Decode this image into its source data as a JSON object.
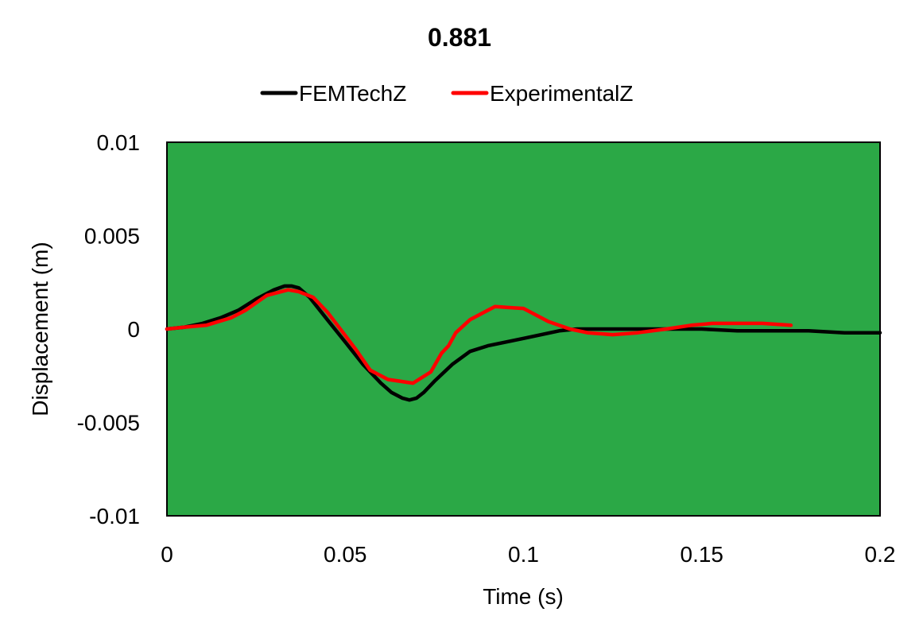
{
  "chart_data": {
    "type": "line",
    "title": "0.881",
    "xlabel": "Time (s)",
    "ylabel": "Displacement (m)",
    "xlim": [
      0,
      0.2
    ],
    "ylim": [
      -0.01,
      0.01
    ],
    "x_ticks": [
      "0",
      "0.05",
      "0.1",
      "0.15",
      "0.2"
    ],
    "y_ticks": [
      "0.01",
      "0.005",
      "0",
      "-0.005",
      "-0.01"
    ],
    "x_tick_values": [
      0,
      0.05,
      0.1,
      0.15,
      0.2
    ],
    "y_tick_values": [
      0.01,
      0.005,
      0,
      -0.005,
      -0.01
    ],
    "grid": false,
    "legend_position": "top",
    "plot_background": "#2ba846",
    "series": [
      {
        "name": "FEMTechZ",
        "color": "#000000",
        "x": [
          0,
          0.005,
          0.01,
          0.015,
          0.02,
          0.025,
          0.03,
          0.033,
          0.035,
          0.037,
          0.04,
          0.045,
          0.05,
          0.055,
          0.06,
          0.063,
          0.066,
          0.068,
          0.07,
          0.072,
          0.075,
          0.08,
          0.085,
          0.09,
          0.095,
          0.1,
          0.105,
          0.11,
          0.115,
          0.12,
          0.13,
          0.14,
          0.15,
          0.16,
          0.17,
          0.18,
          0.19,
          0.2
        ],
        "y": [
          0,
          0.0001,
          0.0003,
          0.0006,
          0.001,
          0.0016,
          0.0021,
          0.0023,
          0.0023,
          0.0022,
          0.0017,
          0.0005,
          -0.0007,
          -0.0019,
          -0.0029,
          -0.0034,
          -0.0037,
          -0.0038,
          -0.0037,
          -0.0034,
          -0.0028,
          -0.0019,
          -0.0012,
          -0.0009,
          -0.0007,
          -0.0005,
          -0.0003,
          -0.0001,
          0.0,
          0.0,
          0.0,
          0.0,
          0.0,
          -0.0001,
          -0.0001,
          -0.0001,
          -0.0002,
          -0.0002
        ]
      },
      {
        "name": "ExperimentalZ",
        "color": "#ff0000",
        "x": [
          0,
          0.005,
          0.011,
          0.018,
          0.022,
          0.028,
          0.034,
          0.037,
          0.041,
          0.045,
          0.049,
          0.053,
          0.057,
          0.062,
          0.069,
          0.074,
          0.077,
          0.079,
          0.081,
          0.085,
          0.089,
          0.092,
          0.1,
          0.107,
          0.113,
          0.118,
          0.125,
          0.132,
          0.14,
          0.147,
          0.153,
          0.16,
          0.167,
          0.175
        ],
        "y": [
          0,
          0.0001,
          0.0002,
          0.0006,
          0.001,
          0.0018,
          0.0021,
          0.002,
          0.0017,
          0.0009,
          -0.0001,
          -0.0011,
          -0.0022,
          -0.0027,
          -0.0029,
          -0.0023,
          -0.0013,
          -0.0009,
          -0.0002,
          0.0005,
          0.0009,
          0.0012,
          0.0011,
          0.0004,
          0.0,
          -0.0002,
          -0.0003,
          -0.0002,
          0.0,
          0.0002,
          0.0003,
          0.0003,
          0.0003,
          0.0002
        ]
      }
    ]
  }
}
